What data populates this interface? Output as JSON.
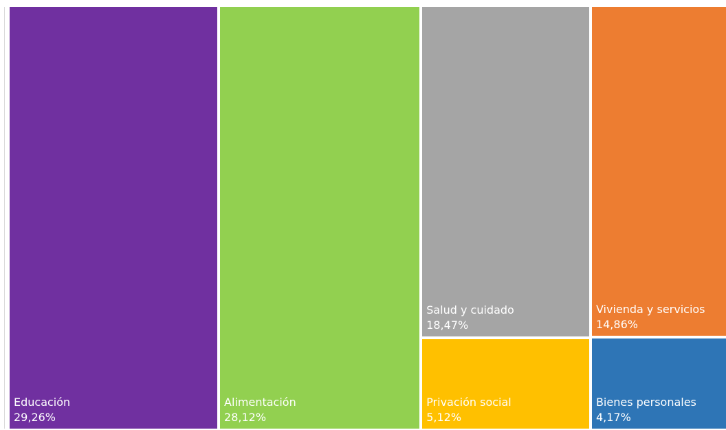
{
  "chart_data": {
    "type": "treemap",
    "title": "",
    "items": [
      {
        "name": "Educación",
        "value": 29.26,
        "value_label": "29,26%",
        "color": "#7030A0"
      },
      {
        "name": "Alimentación",
        "value": 28.12,
        "value_label": "28,12%",
        "color": "#92D050"
      },
      {
        "name": "Salud y cuidado",
        "value": 18.47,
        "value_label": "18,47%",
        "color": "#A5A5A5"
      },
      {
        "name": "Vivienda y servicios",
        "value": 14.86,
        "value_label": "14,86%",
        "color": "#ED7D31"
      },
      {
        "name": "Privación social",
        "value": 5.12,
        "value_label": "5,12%",
        "color": "#FFC000"
      },
      {
        "name": "Bienes personales",
        "value": 4.17,
        "value_label": "4,17%",
        "color": "#2E75B6"
      }
    ]
  }
}
